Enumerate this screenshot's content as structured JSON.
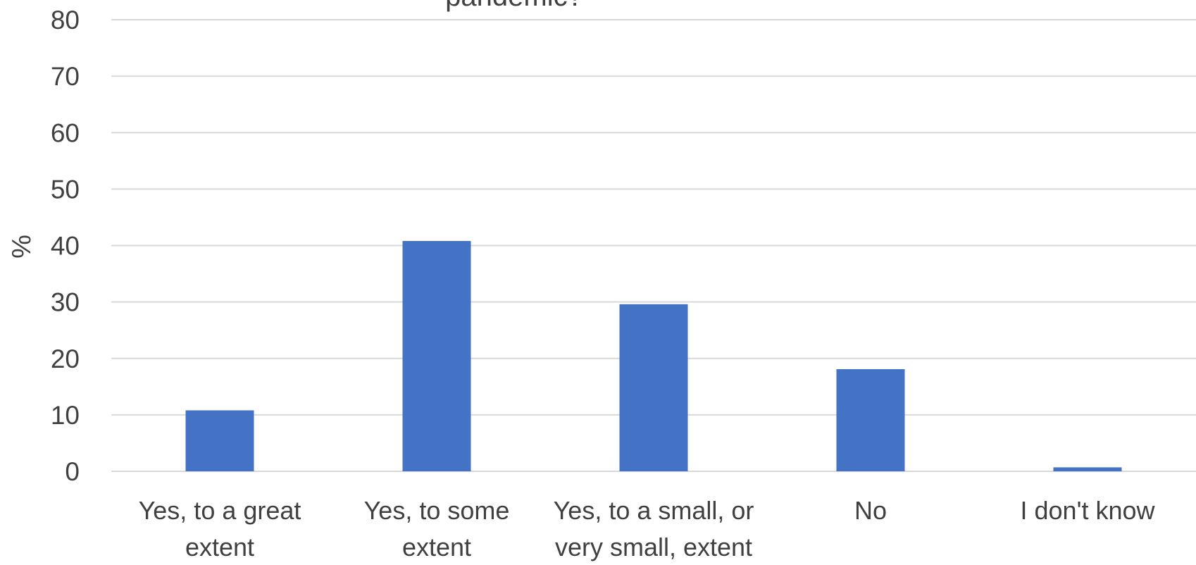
{
  "chart_data": {
    "type": "bar",
    "title": "pandemic?",
    "xlabel": "",
    "ylabel": "%",
    "ylim": [
      0,
      80
    ],
    "yticks": [
      0,
      10,
      20,
      30,
      40,
      50,
      60,
      70,
      80
    ],
    "grid": true,
    "legend": "none",
    "bar_color": "#4472C4",
    "grid_color": "#D9D9D9",
    "categories": [
      [
        "Yes, to a great",
        "extent"
      ],
      [
        "Yes, to some",
        "extent"
      ],
      [
        "Yes, to a small, or",
        "very small, extent"
      ],
      [
        "No"
      ],
      [
        "I don't know"
      ]
    ],
    "values": [
      10.8,
      40.8,
      29.6,
      18.1,
      0.7
    ]
  }
}
